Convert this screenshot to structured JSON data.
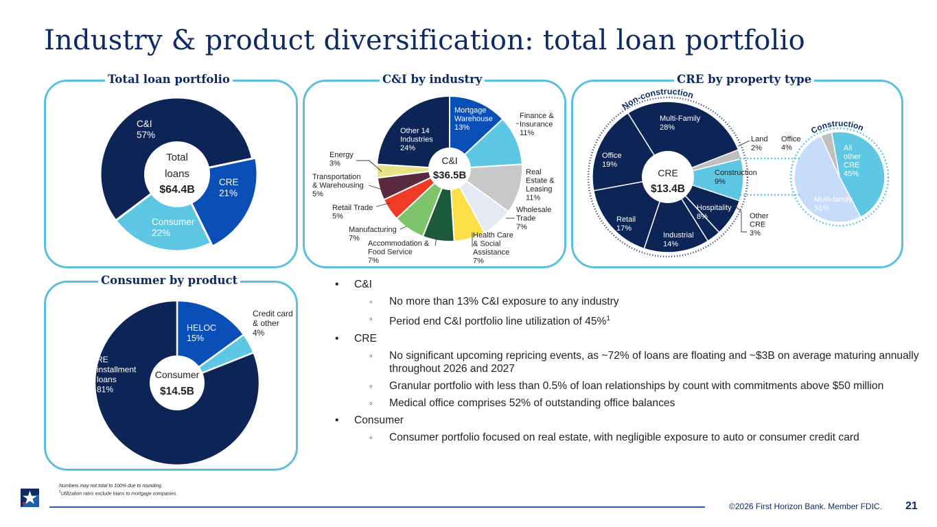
{
  "title": "Industry & product diversification: total loan portfolio",
  "colors": {
    "navy": "#0e2a66",
    "dark": "#0d2556",
    "blue": "#0a4fb8",
    "cyan": "#5ec7e4",
    "gray": "#bfbfbf",
    "border": "#5bbfdf"
  },
  "panels": {
    "total": "Total loan portfolio",
    "cni": "C&I by industry",
    "cre": "CRE by property type",
    "consumer": "Consumer by product"
  },
  "chart_data": [
    {
      "type": "pie",
      "title": "Total loan portfolio",
      "center_label": "Total loans",
      "center_line1": "Total",
      "center_line2": "loans",
      "center_value": "$64.4B",
      "slices": [
        {
          "name": "C&I",
          "value": 57,
          "pct": "57%"
        },
        {
          "name": "CRE",
          "value": 21,
          "pct": "21%"
        },
        {
          "name": "Consumer",
          "value": 22,
          "pct": "22%"
        }
      ]
    },
    {
      "type": "pie",
      "title": "C&I by industry",
      "center_label": "C&I",
      "center_value": "$36.5B",
      "slices": [
        {
          "name": "Mortgage Warehouse",
          "value": 13,
          "pct": "13%"
        },
        {
          "name": "Finance & Insurance",
          "value": 11,
          "pct": "11%"
        },
        {
          "name": "Real Estate & Leasing",
          "value": 11,
          "pct": "11%"
        },
        {
          "name": "Wholesale Trade",
          "value": 7,
          "pct": "7%"
        },
        {
          "name": "Health Care & Social Assistance",
          "value": 7,
          "pct": "7%"
        },
        {
          "name": "Accommodation & Food Service",
          "value": 7,
          "pct": "7%"
        },
        {
          "name": "Manufacturing",
          "value": 7,
          "pct": "7%"
        },
        {
          "name": "Retail Trade",
          "value": 5,
          "pct": "5%"
        },
        {
          "name": "Transportation & Warehousing",
          "value": 5,
          "pct": "5%"
        },
        {
          "name": "Energy",
          "value": 3,
          "pct": "3%"
        },
        {
          "name": "Other 14 Industries",
          "value": 24,
          "pct": "24%"
        }
      ]
    },
    {
      "type": "pie",
      "title": "CRE by property type",
      "center_label": "CRE",
      "center_value": "$13.4B",
      "group_labels": {
        "non_construction": "Non-construction",
        "construction": "Construction"
      },
      "slices": [
        {
          "name": "Multi-Family",
          "value": 28,
          "pct": "28%"
        },
        {
          "name": "Land",
          "value": 2,
          "pct": "2%"
        },
        {
          "name": "Construction",
          "value": 9,
          "pct": "9%"
        },
        {
          "name": "Hospitality",
          "value": 8,
          "pct": "8%"
        },
        {
          "name": "Other CRE",
          "value": 3,
          "pct": "3%"
        },
        {
          "name": "Industrial",
          "value": 14,
          "pct": "14%"
        },
        {
          "name": "Retail",
          "value": 17,
          "pct": "17%"
        },
        {
          "name": "Office",
          "value": 19,
          "pct": "19%"
        }
      ],
      "construction_breakdown": [
        {
          "name": "All other CRE",
          "value": 45,
          "pct": "45%"
        },
        {
          "name": "Multi-family",
          "value": 51,
          "pct": "51%"
        },
        {
          "name": "Office",
          "value": 4,
          "pct": "4%"
        }
      ]
    },
    {
      "type": "pie",
      "title": "Consumer by product",
      "center_label": "Consumer",
      "center_value": "$14.5B",
      "slices": [
        {
          "name": "HELOC",
          "value": 15,
          "pct": "15%"
        },
        {
          "name": "Credit card & other",
          "value": 4,
          "pct": "4%"
        },
        {
          "name": "RE installment loans",
          "value": 81,
          "pct": "81%"
        }
      ]
    }
  ],
  "bullets": [
    {
      "level": 1,
      "text": "C&I"
    },
    {
      "level": 2,
      "text": "No more than 13% C&I exposure to any industry"
    },
    {
      "level": 2,
      "text": "Period end C&I portfolio line utilization of 45%",
      "sup": "1"
    },
    {
      "level": 1,
      "text": "CRE"
    },
    {
      "level": 2,
      "text": "No significant upcoming repricing events, as ~72% of loans are floating and ~$3B on average maturing annually throughout 2026 and 2027"
    },
    {
      "level": 2,
      "text": "Granular portfolio with less than 0.5% of loan relationships by count with commitments above $50 million"
    },
    {
      "level": 2,
      "text": "Medical office comprises 52% of outstanding office balances"
    },
    {
      "level": 1,
      "text": "Consumer"
    },
    {
      "level": 2,
      "text": "Consumer portfolio focused on real estate, with negligible exposure to auto or consumer credit card"
    }
  ],
  "footnotes": {
    "line1": "Numbers may not total to 100% due to rounding.",
    "line2": "Utilization rates exclude loans to mortgage companies.",
    "line2_sup": "1"
  },
  "footer": {
    "copyright": "©2026 First Horizon Bank. Member FDIC.",
    "page": "21"
  }
}
